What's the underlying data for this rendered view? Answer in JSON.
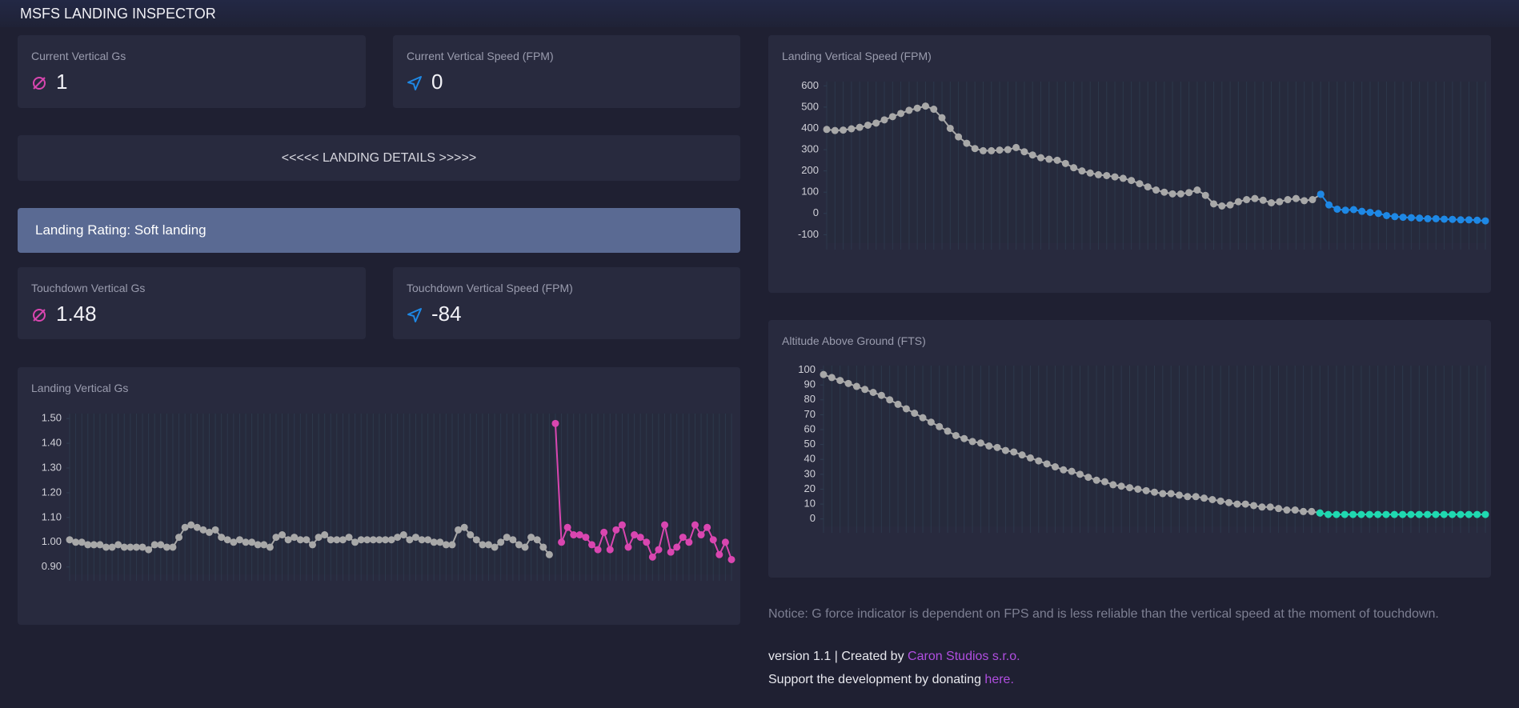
{
  "header": {
    "title": "MSFS LANDING INSPECTOR"
  },
  "cards": [
    {
      "label": "Current Vertical Gs",
      "value": 1
    },
    {
      "label": "Current Vertical Speed (FPM)",
      "value": 0
    },
    {
      "label": "Touchdown Vertical Gs",
      "value": 1.48
    },
    {
      "label": "Touchdown Vertical Speed (FPM)",
      "value": -84
    }
  ],
  "landing_details": "<<<<< LANDING DETAILS >>>>>",
  "rating": "Landing Rating: Soft landing",
  "chart_data": [
    {
      "type": "line",
      "title": "Landing Vertical Gs",
      "ylim": [
        0.87,
        1.52
      ],
      "yticks": [
        {
          "value": 0.9,
          "label": "0.90"
        },
        {
          "value": 1.0,
          "label": "1.00"
        },
        {
          "value": 1.1,
          "label": "1.10"
        },
        {
          "value": 1.2,
          "label": "1.20"
        },
        {
          "value": 1.3,
          "label": "1.30"
        },
        {
          "value": 1.4,
          "label": "1.40"
        },
        {
          "value": 1.5,
          "label": "1.50"
        }
      ],
      "grid": true,
      "series": [
        {
          "color": "#a8a8a8",
          "values": [
            1.01,
            1.0,
            1.0,
            0.99,
            0.99,
            0.99,
            0.98,
            0.98,
            0.99,
            0.98,
            0.98,
            0.98,
            0.98,
            0.97,
            0.99,
            0.99,
            0.98,
            0.98,
            1.02,
            1.06,
            1.07,
            1.06,
            1.05,
            1.04,
            1.05,
            1.02,
            1.01,
            1.0,
            1.01,
            1.0,
            1.0,
            0.99,
            0.99,
            0.98,
            1.02,
            1.03,
            1.01,
            1.02,
            1.01,
            1.01,
            0.99,
            1.02,
            1.03,
            1.01,
            1.01,
            1.01,
            1.02,
            1.0,
            1.01,
            1.01,
            1.01,
            1.01,
            1.01,
            1.01,
            1.02,
            1.03,
            1.01,
            1.02,
            1.01,
            1.01,
            1.0,
            1.0,
            0.99,
            0.99,
            1.05,
            1.06,
            1.03,
            1.01,
            0.99,
            0.99,
            0.98,
            1.0,
            1.02,
            1.01,
            0.99,
            0.98,
            1.02,
            1.01,
            0.98,
            0.95,
            null,
            null,
            null,
            null,
            null,
            null,
            null,
            null,
            null,
            null,
            null,
            null,
            null,
            null,
            null,
            null,
            null,
            null,
            null,
            null,
            null,
            null,
            null,
            null,
            null,
            null,
            null,
            null,
            null,
            null
          ]
        },
        {
          "color": "#d946b0",
          "values": [
            null,
            null,
            null,
            null,
            null,
            null,
            null,
            null,
            null,
            null,
            null,
            null,
            null,
            null,
            null,
            null,
            null,
            null,
            null,
            null,
            null,
            null,
            null,
            null,
            null,
            null,
            null,
            null,
            null,
            null,
            null,
            null,
            null,
            null,
            null,
            null,
            null,
            null,
            null,
            null,
            null,
            null,
            null,
            null,
            null,
            null,
            null,
            null,
            null,
            null,
            null,
            null,
            null,
            null,
            null,
            null,
            null,
            null,
            null,
            null,
            null,
            null,
            null,
            null,
            null,
            null,
            null,
            null,
            null,
            null,
            null,
            null,
            null,
            null,
            null,
            null,
            null,
            null,
            null,
            null,
            1.48,
            1.0,
            1.06,
            1.03,
            1.03,
            1.02,
            0.99,
            0.97,
            1.04,
            0.97,
            1.05,
            1.07,
            0.98,
            1.03,
            1.02,
            1.0,
            0.94,
            0.97,
            1.07,
            0.96,
            0.98,
            1.02,
            1.0,
            1.07,
            1.03,
            1.06,
            1.01,
            0.95,
            1.0,
            0.93
          ]
        }
      ]
    },
    {
      "type": "line",
      "title": "Landing Vertical Speed (FPM)",
      "ylim": [
        -140,
        620
      ],
      "yticks": [
        -100,
        0,
        100,
        200,
        300,
        400,
        500,
        600
      ],
      "grid": true,
      "series": [
        {
          "color": "#a8a8a8",
          "values": [
            395,
            390,
            392,
            398,
            405,
            415,
            425,
            440,
            455,
            470,
            485,
            495,
            505,
            490,
            450,
            400,
            360,
            330,
            305,
            295,
            295,
            298,
            300,
            310,
            290,
            275,
            262,
            255,
            250,
            235,
            215,
            200,
            190,
            182,
            178,
            172,
            165,
            155,
            140,
            125,
            110,
            100,
            92,
            92,
            98,
            110,
            85,
            45,
            35,
            40,
            55,
            65,
            70,
            62,
            50,
            55,
            65,
            70,
            60,
            65,
            90,
            null,
            null,
            null,
            null,
            null,
            null,
            null,
            null,
            null,
            null,
            null,
            null,
            null,
            null,
            null,
            null,
            null,
            null,
            null,
            null
          ]
        },
        {
          "color": "#1e88e5",
          "values": [
            null,
            null,
            null,
            null,
            null,
            null,
            null,
            null,
            null,
            null,
            null,
            null,
            null,
            null,
            null,
            null,
            null,
            null,
            null,
            null,
            null,
            null,
            null,
            null,
            null,
            null,
            null,
            null,
            null,
            null,
            null,
            null,
            null,
            null,
            null,
            null,
            null,
            null,
            null,
            null,
            null,
            null,
            null,
            null,
            null,
            null,
            null,
            null,
            null,
            null,
            null,
            null,
            null,
            null,
            null,
            null,
            null,
            null,
            null,
            null,
            90,
            40,
            20,
            15,
            18,
            10,
            5,
            0,
            -10,
            -15,
            -18,
            -20,
            -22,
            -25,
            -25,
            -27,
            -28,
            -30,
            -30,
            -32,
            -35
          ]
        }
      ]
    },
    {
      "type": "line",
      "title": "Altitude Above Ground (FTS)",
      "ylim": [
        -5,
        103
      ],
      "yticks": [
        0,
        10,
        20,
        30,
        40,
        50,
        60,
        70,
        80,
        90,
        100
      ],
      "grid": true,
      "series": [
        {
          "color": "#a8a8a8",
          "values": [
            97,
            95,
            93,
            91,
            89,
            87,
            85,
            83,
            80,
            77,
            74,
            71,
            68,
            65,
            62,
            59,
            56,
            54,
            52,
            51,
            49,
            48,
            46,
            45,
            43,
            41,
            39,
            37,
            35,
            33,
            32,
            30,
            28,
            26,
            25,
            23,
            22,
            21,
            20,
            19,
            18,
            17,
            17,
            16,
            15,
            15,
            14,
            13,
            12,
            11,
            10,
            10,
            9,
            8,
            8,
            7,
            6,
            6,
            5,
            5,
            4,
            null,
            null,
            null,
            null,
            null,
            null,
            null,
            null,
            null,
            null,
            null,
            null,
            null,
            null,
            null,
            null,
            null,
            null,
            null,
            null
          ]
        },
        {
          "color": "#1fd8b0",
          "values": [
            null,
            null,
            null,
            null,
            null,
            null,
            null,
            null,
            null,
            null,
            null,
            null,
            null,
            null,
            null,
            null,
            null,
            null,
            null,
            null,
            null,
            null,
            null,
            null,
            null,
            null,
            null,
            null,
            null,
            null,
            null,
            null,
            null,
            null,
            null,
            null,
            null,
            null,
            null,
            null,
            null,
            null,
            null,
            null,
            null,
            null,
            null,
            null,
            null,
            null,
            null,
            null,
            null,
            null,
            null,
            null,
            null,
            null,
            null,
            null,
            4,
            3,
            3,
            3,
            3,
            3,
            3,
            3,
            3,
            3,
            3,
            3,
            3,
            3,
            3,
            3,
            3,
            3,
            3,
            3,
            3
          ]
        }
      ]
    }
  ],
  "footer": {
    "notice": "Notice: G force indicator is dependent on FPS and is less reliable than the vertical speed at the moment of touchdown.",
    "version": "version 1.1 | Created by ",
    "author": "Caron Studios s.r.o.",
    "support": "Support the development by donating ",
    "link": "here."
  }
}
